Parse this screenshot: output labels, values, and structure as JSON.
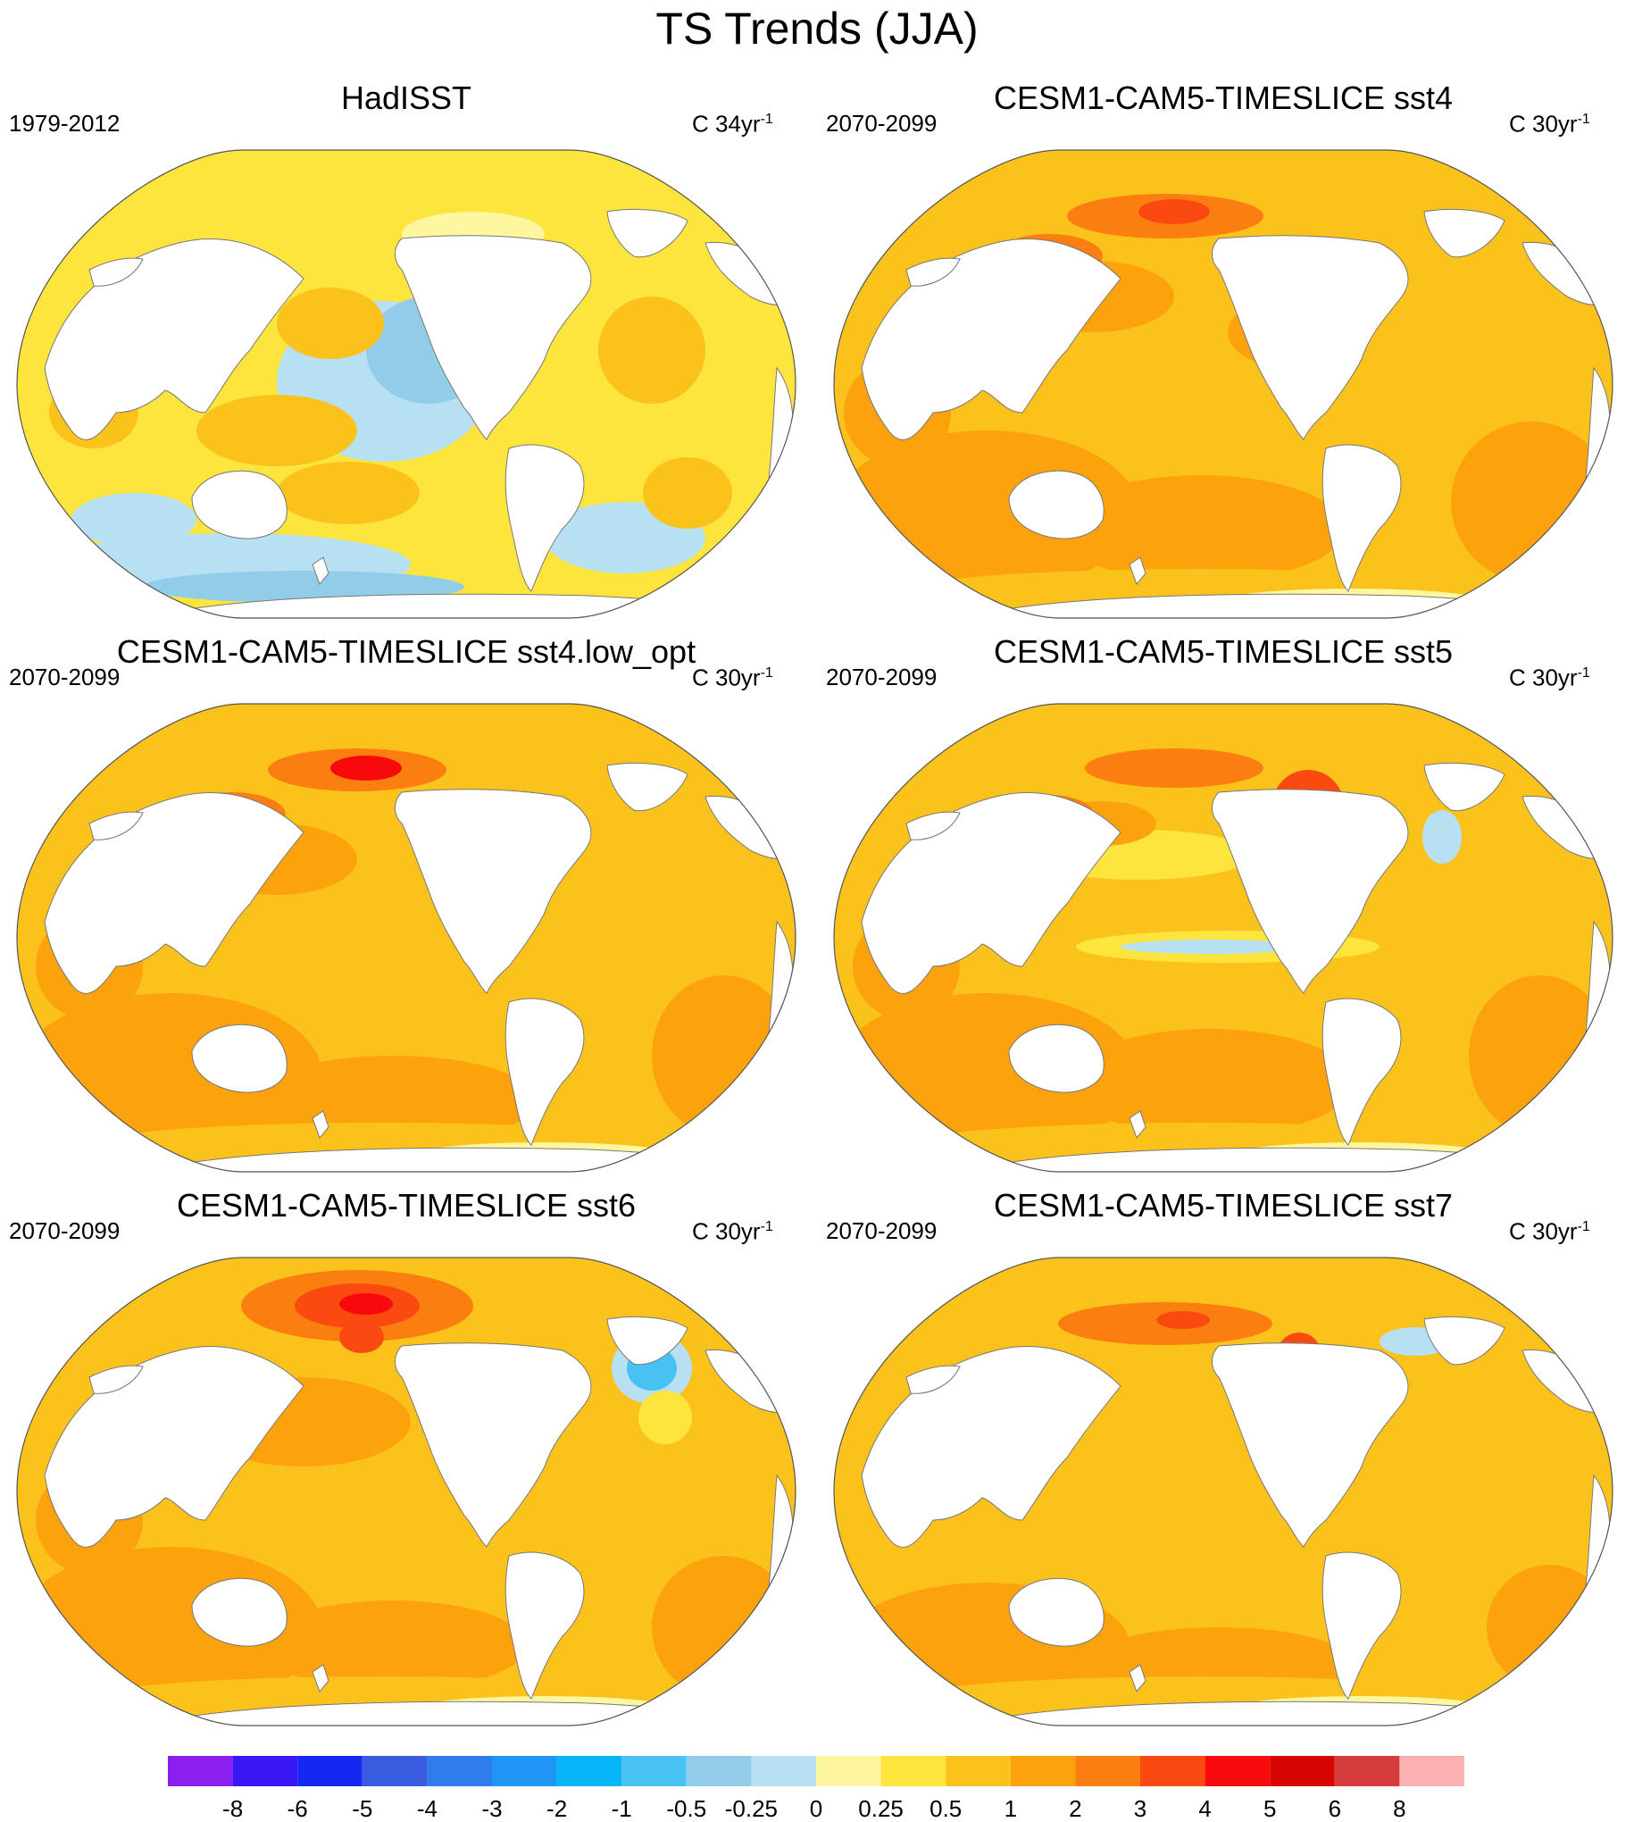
{
  "title": "TS Trends (JJA)",
  "panels": [
    {
      "title": "HadISST",
      "period": "1979-2012",
      "units_prefix": "C 34yr",
      "units_exp": "-1",
      "scheme": "obs"
    },
    {
      "title": "CESM1-CAM5-TIMESLICE sst4",
      "period": "2070-2099",
      "units_prefix": "C 30yr",
      "units_exp": "-1",
      "scheme": "sst4"
    },
    {
      "title": "CESM1-CAM5-TIMESLICE sst4.low_opt",
      "period": "2070-2099",
      "units_prefix": "C 30yr",
      "units_exp": "-1",
      "scheme": "sst4low"
    },
    {
      "title": "CESM1-CAM5-TIMESLICE sst5",
      "period": "2070-2099",
      "units_prefix": "C 30yr",
      "units_exp": "-1",
      "scheme": "sst5"
    },
    {
      "title": "CESM1-CAM5-TIMESLICE sst6",
      "period": "2070-2099",
      "units_prefix": "C 30yr",
      "units_exp": "-1",
      "scheme": "sst6"
    },
    {
      "title": "CESM1-CAM5-TIMESLICE sst7",
      "period": "2070-2099",
      "units_prefix": "C 30yr",
      "units_exp": "-1",
      "scheme": "sst7"
    }
  ],
  "colorbar": {
    "labels": [
      "-8",
      "-6",
      "-5",
      "-4",
      "-3",
      "-2",
      "-1",
      "-0.5",
      "-0.25",
      "0",
      "0.25",
      "0.5",
      "1",
      "2",
      "3",
      "4",
      "5",
      "6",
      "8"
    ],
    "colors": [
      "#8c1ef0",
      "#3a18f5",
      "#1428f0",
      "#3a5ce0",
      "#2f7cec",
      "#1d96f5",
      "#06b6f8",
      "#47c2f2",
      "#91cde8",
      "#b7e0f3",
      "#fff6a0",
      "#fde53d",
      "#fcc21c",
      "#fca20c",
      "#fb7e10",
      "#fb4a10",
      "#f80a0c",
      "#d80505",
      "#d63c3c",
      "#fcb2b2"
    ]
  }
}
